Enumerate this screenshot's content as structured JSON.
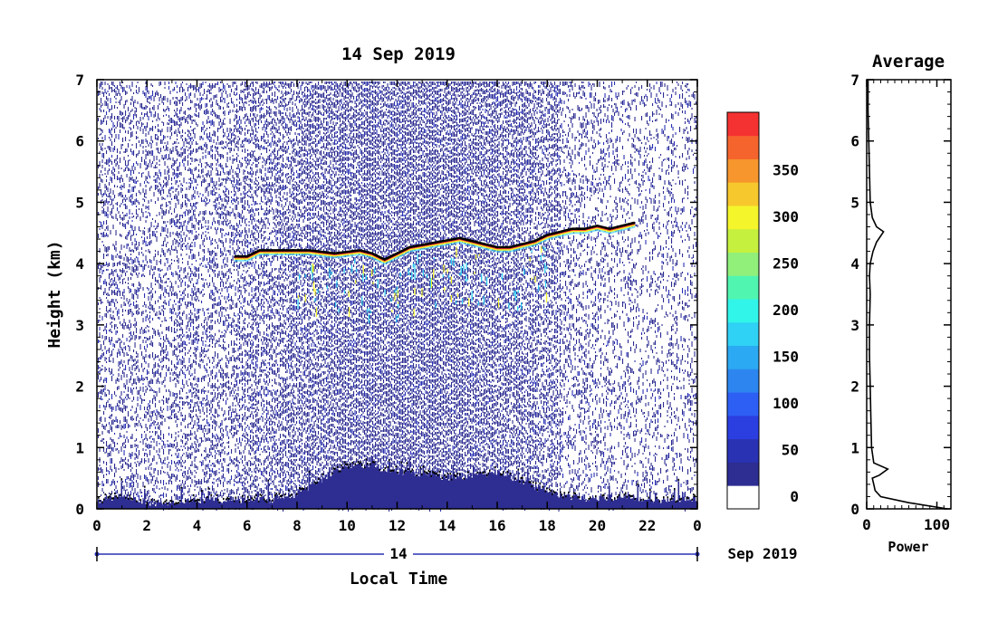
{
  "chart_data": [
    {
      "type": "heatmap",
      "title": "14 Sep 2019",
      "xlabel": "Local Time",
      "ylabel": "Height (km)",
      "xlim": [
        0,
        24
      ],
      "ylim": [
        0,
        7
      ],
      "x_ticks": [
        "0",
        "2",
        "4",
        "6",
        "8",
        "10",
        "12",
        "14",
        "16",
        "18",
        "20",
        "22",
        "0"
      ],
      "y_ticks": [
        "0",
        "1",
        "2",
        "3",
        "4",
        "5",
        "6",
        "7"
      ],
      "date_day": "14",
      "date_month_year": "Sep 2019",
      "colorbar": {
        "min": 0,
        "max": 375,
        "step": 25,
        "tick_labels": [
          "0",
          "50",
          "100",
          "150",
          "200",
          "250",
          "300",
          "350"
        ],
        "colors": [
          "#ffffff",
          "#2d2d92",
          "#2a32b4",
          "#2b3ee0",
          "#2e5ff5",
          "#2d86f0",
          "#2ba9f2",
          "#2fd1f5",
          "#30f5e8",
          "#50f5b0",
          "#90f07a",
          "#c6f03e",
          "#f5f52b",
          "#f7c82d",
          "#f7962d",
          "#f5642d",
          "#f53232"
        ]
      },
      "layer_height_series": {
        "name": "",
        "x": [
          5.5,
          6.0,
          6.5,
          8.5,
          9.5,
          10.5,
          11.0,
          11.5,
          12.0,
          12.5,
          14.5,
          15.0,
          15.5,
          16.0,
          16.5,
          17.0,
          17.5,
          18.0,
          18.5,
          19.0,
          19.5,
          20.0,
          20.5,
          21.0,
          21.5
        ],
        "y": [
          4.1,
          4.1,
          4.2,
          4.2,
          4.15,
          4.2,
          4.15,
          4.05,
          4.15,
          4.25,
          4.4,
          4.35,
          4.3,
          4.25,
          4.25,
          4.3,
          4.35,
          4.45,
          4.5,
          4.55,
          4.55,
          4.6,
          4.55,
          4.6,
          4.65
        ]
      },
      "boundary_layer_top": {
        "x": [
          0,
          1,
          2,
          3,
          4,
          5,
          6,
          7,
          8,
          9,
          10,
          11,
          12,
          13,
          14,
          15,
          16,
          17,
          18,
          19,
          20,
          21,
          22,
          23,
          24
        ],
        "y": [
          0.15,
          0.2,
          0.1,
          0.1,
          0.15,
          0.15,
          0.15,
          0.15,
          0.25,
          0.5,
          0.7,
          0.7,
          0.6,
          0.55,
          0.5,
          0.55,
          0.6,
          0.45,
          0.25,
          0.2,
          0.15,
          0.2,
          0.15,
          0.15,
          0.15
        ]
      }
    },
    {
      "type": "line",
      "title": "Average",
      "xlabel": "Power",
      "ylabel": "",
      "xlim": [
        0,
        120
      ],
      "ylim": [
        0,
        7
      ],
      "x_ticks": [
        "0",
        "100"
      ],
      "y_ticks": [
        "0",
        "1",
        "2",
        "3",
        "4",
        "5",
        "6",
        "7"
      ],
      "series": [
        {
          "name": "",
          "x": [
            115,
            60,
            20,
            12,
            10,
            8,
            18,
            30,
            10,
            7,
            6,
            5,
            4,
            4,
            5,
            4,
            5,
            9,
            14,
            24,
            14,
            8,
            5,
            4,
            3,
            2,
            2
          ],
          "y": [
            0.0,
            0.1,
            0.2,
            0.3,
            0.4,
            0.5,
            0.55,
            0.65,
            0.75,
            1.0,
            1.5,
            2.0,
            2.5,
            3.0,
            3.5,
            3.8,
            4.0,
            4.2,
            4.35,
            4.52,
            4.6,
            4.75,
            5.0,
            5.5,
            6.0,
            6.5,
            7.0
          ]
        }
      ]
    }
  ]
}
